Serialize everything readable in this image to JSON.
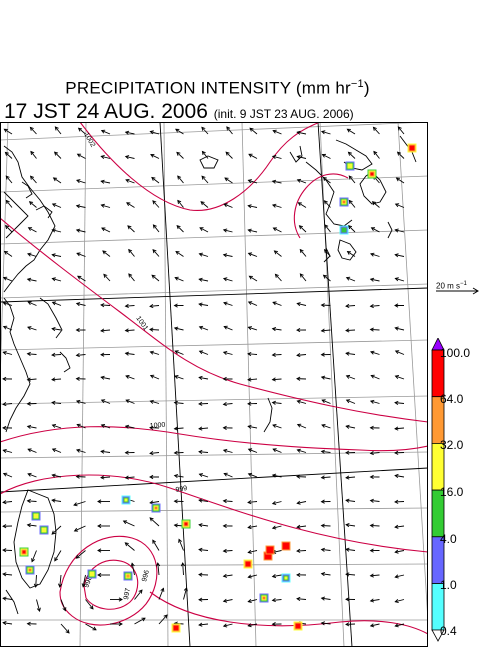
{
  "title": {
    "main": "PRECIPITATION INTENSITY (mm hr",
    "unit_sup": "−1",
    "close": ")"
  },
  "valid_time": "17 JST 24 AUG. 2006",
  "init_time": "(init. 9 JST 23 AUG. 2006)",
  "vector_scale": {
    "label": "20 m s",
    "sup": "−1"
  },
  "colorbar": {
    "labels": [
      "100.0",
      "64.0",
      "32.0",
      "16.0",
      "4.0",
      "1.0",
      "0.4"
    ],
    "colors": [
      "#9900ff",
      "#ff0000",
      "#ff9933",
      "#ffff33",
      "#33cc33",
      "#6666ff",
      "#55ffff",
      "#ffffff"
    ]
  },
  "isobars": {
    "color": "#cc0044",
    "labels": [
      "1002",
      "1001",
      "1000",
      "999",
      "998",
      "997",
      "996"
    ]
  },
  "colors": {
    "coast": "#000000",
    "grid": "#9a9a9a"
  }
}
